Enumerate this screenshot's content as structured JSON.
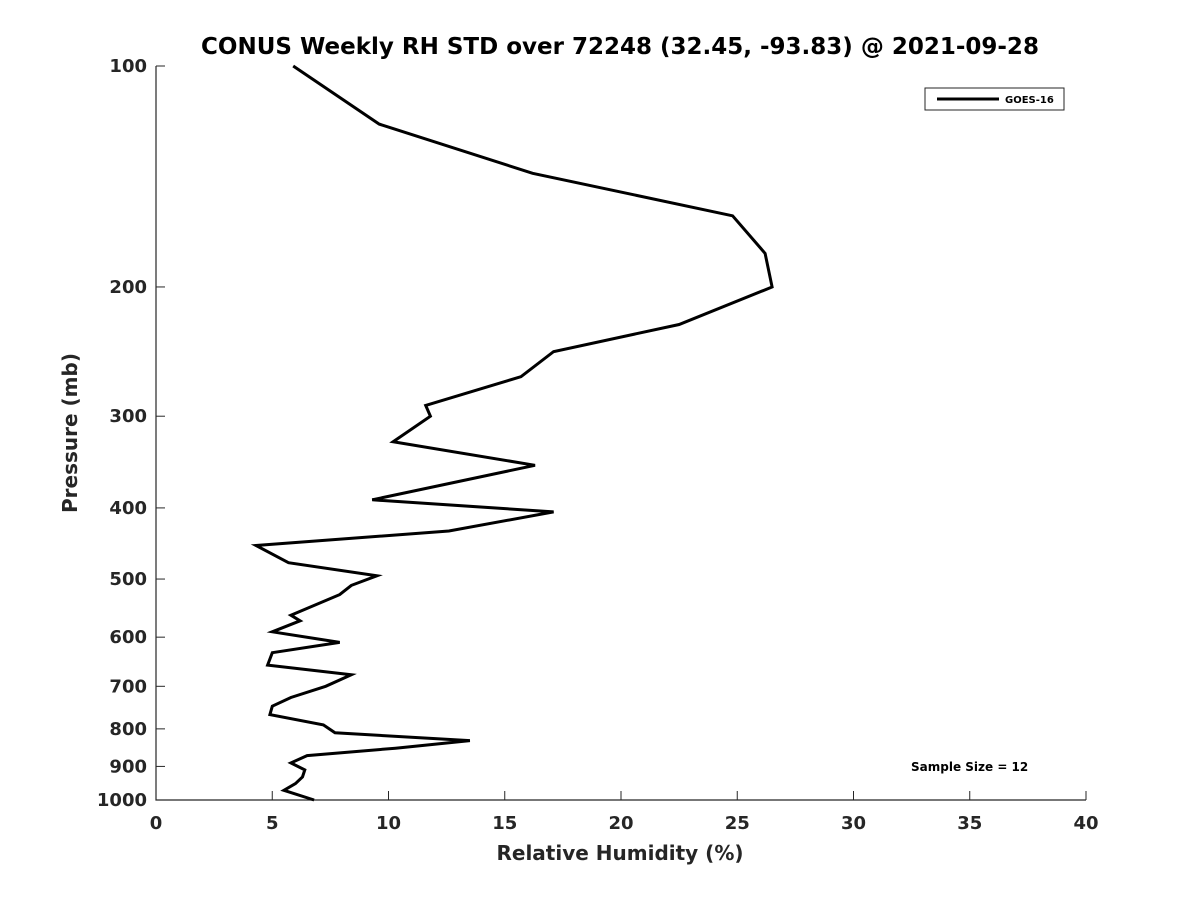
{
  "chart_data": {
    "type": "line",
    "title": "CONUS Weekly RH STD over 72248 (32.45, -93.83) @ 2021-09-28",
    "xlabel": "Relative Humidity (%)",
    "ylabel": "Pressure (mb)",
    "xlim": [
      0,
      40
    ],
    "ylim": [
      100,
      1000
    ],
    "y_scale": "log",
    "y_reversed": true,
    "grid": false,
    "legend_position": "top-right",
    "x_ticks": [
      "0",
      "5",
      "10",
      "15",
      "20",
      "25",
      "30",
      "35",
      "40"
    ],
    "y_ticks": [
      "100",
      "200",
      "300",
      "400",
      "500",
      "600",
      "700",
      "800",
      "900",
      "1000"
    ],
    "series": [
      {
        "name": "GOES-16",
        "color": "#000000",
        "x": [
          5.9,
          9.6,
          16.2,
          24.8,
          26.2,
          26.5,
          22.5,
          17.1,
          15.7,
          11.6,
          11.8,
          10.2,
          16.3,
          9.3,
          17.1,
          12.6,
          4.3,
          5.7,
          9.5,
          8.4,
          7.9,
          5.8,
          6.2,
          5.0,
          7.9,
          5.0,
          4.8,
          8.4,
          7.3,
          5.8,
          5.0,
          4.9,
          7.2,
          7.7,
          13.5,
          10.3,
          6.5,
          5.8,
          6.4,
          6.3,
          6.0,
          5.5,
          6.8
        ],
        "y": [
          100,
          120,
          140,
          160,
          180,
          200,
          225,
          245,
          265,
          290,
          300,
          325,
          350,
          390,
          405,
          430,
          450,
          475,
          495,
          510,
          525,
          560,
          570,
          590,
          610,
          630,
          655,
          675,
          700,
          725,
          745,
          765,
          790,
          810,
          830,
          850,
          870,
          890,
          910,
          930,
          950,
          970,
          1000
        ]
      }
    ],
    "annotation": "Sample Size = 12"
  }
}
